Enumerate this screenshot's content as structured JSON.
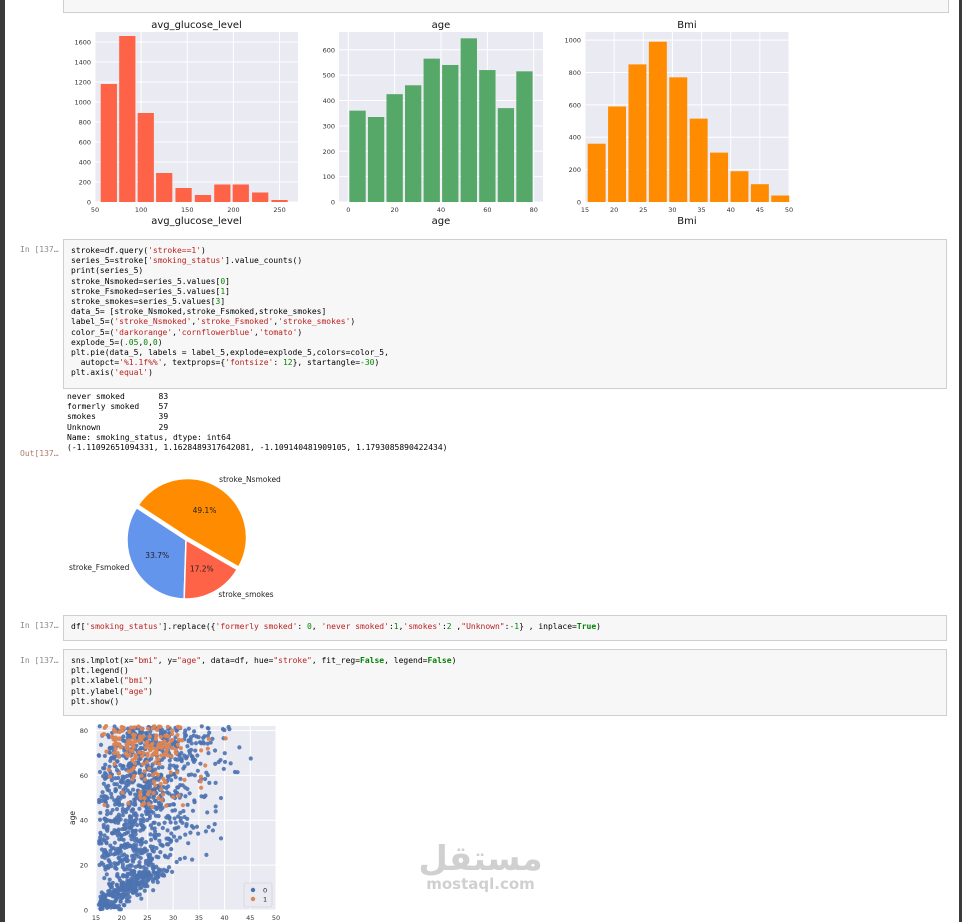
{
  "histograms": [
    {
      "title": "avg_glucose_level",
      "xlabel": "avg_glucose_level",
      "color": "#ff6347",
      "xticks": [
        "50",
        "100",
        "150",
        "200",
        "250"
      ],
      "yticks": [
        "0",
        "200",
        "400",
        "600",
        "800",
        "1000",
        "1200",
        "1400",
        "1600"
      ]
    },
    {
      "title": "age",
      "xlabel": "age",
      "color": "#55a868",
      "xticks": [
        "0",
        "20",
        "40",
        "60",
        "80"
      ],
      "yticks": [
        "0",
        "100",
        "200",
        "300",
        "400",
        "500",
        "600"
      ]
    },
    {
      "title": "Bmi",
      "xlabel": "Bmi",
      "color": "#ff8c00",
      "xticks": [
        "15",
        "20",
        "25",
        "30",
        "35",
        "40",
        "45",
        "50"
      ],
      "yticks": [
        "0",
        "200",
        "400",
        "600",
        "800",
        "1000"
      ]
    }
  ],
  "cells": [
    {
      "prompt": "In [137…",
      "lines": [
        [
          [
            "",
            "stroke=df.query("
          ],
          [
            "s",
            "'stroke==1'"
          ],
          [
            "",
            ")"
          ]
        ],
        [
          [
            "",
            "series_5=stroke["
          ],
          [
            "s",
            "'smoking_status'"
          ],
          [
            "",
            "].value_counts()"
          ]
        ],
        [
          [
            "",
            "print(series_5)"
          ]
        ],
        [
          [
            "",
            "stroke_Nsmoked=series_5.values["
          ],
          [
            "n",
            "0"
          ],
          [
            "",
            "]"
          ]
        ],
        [
          [
            "",
            "stroke_Fsmoked=series_5.values["
          ],
          [
            "n",
            "1"
          ],
          [
            "",
            "]"
          ]
        ],
        [
          [
            "",
            "stroke_smokes=series_5.values["
          ],
          [
            "n",
            "3"
          ],
          [
            "",
            "]"
          ]
        ],
        [
          [
            "",
            "data_5= [stroke_Nsmoked,stroke_Fsmoked,stroke_smokes]"
          ]
        ],
        [
          [
            "",
            "label_5=("
          ],
          [
            "s",
            "'stroke_Nsmoked'"
          ],
          [
            "",
            ","
          ],
          [
            "s",
            "'stroke_Fsmoked'"
          ],
          [
            "",
            ","
          ],
          [
            "s",
            "'stroke_smokes'"
          ],
          [
            "",
            ")"
          ]
        ],
        [
          [
            "",
            "color_5=("
          ],
          [
            "s",
            "'darkorange'"
          ],
          [
            "",
            ","
          ],
          [
            "s",
            "'cornflowerblue'"
          ],
          [
            "",
            ","
          ],
          [
            "s",
            "'tomato'"
          ],
          [
            "",
            ")"
          ]
        ],
        [
          [
            "",
            "explode_5=("
          ],
          [
            "n",
            ".05"
          ],
          [
            "",
            ","
          ],
          [
            "n",
            "0"
          ],
          [
            "",
            ","
          ],
          [
            "n",
            "0"
          ],
          [
            "",
            ")"
          ]
        ],
        [
          [
            "",
            "plt.pie(data_5, labels = label_5,explode=explode_5,colors=color_5,"
          ]
        ],
        [
          [
            "",
            "  autopct="
          ],
          [
            "s",
            "'%1.1f%%'"
          ],
          [
            "",
            ", textprops={"
          ],
          [
            "s",
            "'fontsize'"
          ],
          [
            "",
            ": "
          ],
          [
            "n",
            "12"
          ],
          [
            "",
            "}, startangle="
          ],
          [
            "n",
            "-30"
          ],
          [
            "",
            ")"
          ]
        ],
        [
          [
            "",
            "plt.axis("
          ],
          [
            "s",
            "'equal'"
          ],
          [
            "",
            ")"
          ]
        ]
      ]
    },
    {
      "prompt": "In [137…",
      "lines": [
        [
          [
            "",
            "df["
          ],
          [
            "s",
            "'smoking_status'"
          ],
          [
            "",
            "].replace({"
          ],
          [
            "s",
            "'formerly smoked'"
          ],
          [
            "",
            ": "
          ],
          [
            "n",
            "0"
          ],
          [
            "",
            ", "
          ],
          [
            "s",
            "'never smoked'"
          ],
          [
            "",
            ":"
          ],
          [
            "n",
            "1"
          ],
          [
            "",
            ","
          ],
          [
            "s",
            "'smokes'"
          ],
          [
            "",
            ":"
          ],
          [
            "n",
            "2"
          ],
          [
            "",
            " ,"
          ],
          [
            "s",
            "\"Unknown\""
          ],
          [
            "",
            ":"
          ],
          [
            "n",
            "-1"
          ],
          [
            "",
            "} , inplace="
          ],
          [
            "k",
            "True"
          ],
          [
            "",
            ")"
          ]
        ]
      ]
    },
    {
      "prompt": "In [137…",
      "lines": [
        [
          [
            "",
            "sns.lmplot(x="
          ],
          [
            "s",
            "\"bmi\""
          ],
          [
            "",
            ", y="
          ],
          [
            "s",
            "\"age\""
          ],
          [
            "",
            ", data=df, hue="
          ],
          [
            "s",
            "\"stroke\""
          ],
          [
            "",
            ", fit_reg="
          ],
          [
            "k",
            "False"
          ],
          [
            "",
            ", legend="
          ],
          [
            "k",
            "False"
          ],
          [
            "",
            ")"
          ]
        ],
        [
          [
            "",
            "plt.legend()"
          ]
        ],
        [
          [
            "",
            "plt.xlabel("
          ],
          [
            "s",
            "\"bmi\""
          ],
          [
            "",
            ")"
          ]
        ],
        [
          [
            "",
            "plt.ylabel("
          ],
          [
            "s",
            "\"age\""
          ],
          [
            "",
            ")"
          ]
        ],
        [
          [
            "",
            "plt.show()"
          ]
        ]
      ]
    }
  ],
  "output_text": "never smoked       83\nformerly smoked    57\nsmokes             39\nUnknown            29\nName: smoking_status, dtype: int64\n(-1.11092651094331, 1.1628489317642081, -1.109140481909105, 1.1793085890422434)",
  "out_prompt": "Out[137…",
  "pie": {
    "slices": [
      {
        "label": "stroke_Nsmoked",
        "pct": "49.1%",
        "color": "#ff8c00"
      },
      {
        "label": "stroke_Fsmoked",
        "pct": "33.7%",
        "color": "#6495ed"
      },
      {
        "label": "stroke_smokes",
        "pct": "17.2%",
        "color": "#ff6347"
      }
    ]
  },
  "scatter": {
    "ylabel": "age",
    "yticks": [
      "0",
      "20",
      "40",
      "60",
      "80"
    ],
    "xticks": [
      "15",
      "20",
      "25",
      "30",
      "35",
      "40",
      "45",
      "50"
    ],
    "legend": [
      "0",
      "1"
    ],
    "colors": [
      "#4c72b0",
      "#dd8452"
    ]
  },
  "watermark": {
    "arabic": "مستقل",
    "latin": "mostaql.com"
  },
  "chart_data": [
    {
      "type": "bar",
      "title": "avg_glucose_level",
      "xlabel": "avg_glucose_level",
      "ylabel": "",
      "x": [
        65,
        85,
        105,
        125,
        146,
        167,
        188,
        208,
        229,
        250
      ],
      "values": [
        1180,
        1660,
        890,
        290,
        140,
        70,
        175,
        175,
        95,
        20
      ],
      "xlim": [
        50,
        270
      ],
      "ylim": [
        0,
        1700
      ]
    },
    {
      "type": "bar",
      "title": "age",
      "xlabel": "age",
      "ylabel": "",
      "x": [
        4,
        12,
        20,
        28,
        36,
        44,
        52,
        60,
        68,
        76
      ],
      "values": [
        360,
        335,
        425,
        460,
        565,
        540,
        645,
        520,
        370,
        515
      ],
      "xlim": [
        -4,
        84
      ],
      "ylim": [
        0,
        670
      ]
    },
    {
      "type": "bar",
      "title": "Bmi",
      "xlabel": "Bmi",
      "ylabel": "",
      "x": [
        17,
        20.5,
        24,
        27.5,
        31,
        34.5,
        38,
        41.5,
        45,
        48.5
      ],
      "values": [
        360,
        590,
        850,
        990,
        770,
        515,
        305,
        190,
        110,
        40
      ],
      "xlim": [
        15,
        50
      ],
      "ylim": [
        0,
        1050
      ]
    },
    {
      "type": "pie",
      "categories": [
        "stroke_Nsmoked",
        "stroke_Fsmoked",
        "stroke_smokes"
      ],
      "values": [
        83,
        57,
        29
      ],
      "labels": [
        "49.1%",
        "33.7%",
        "17.2%"
      ]
    },
    {
      "type": "scatter",
      "xlabel": "",
      "ylabel": "age",
      "xlim": [
        15,
        50
      ],
      "ylim": [
        0,
        82
      ],
      "series": [
        {
          "name": "0"
        },
        {
          "name": "1"
        }
      ]
    }
  ]
}
